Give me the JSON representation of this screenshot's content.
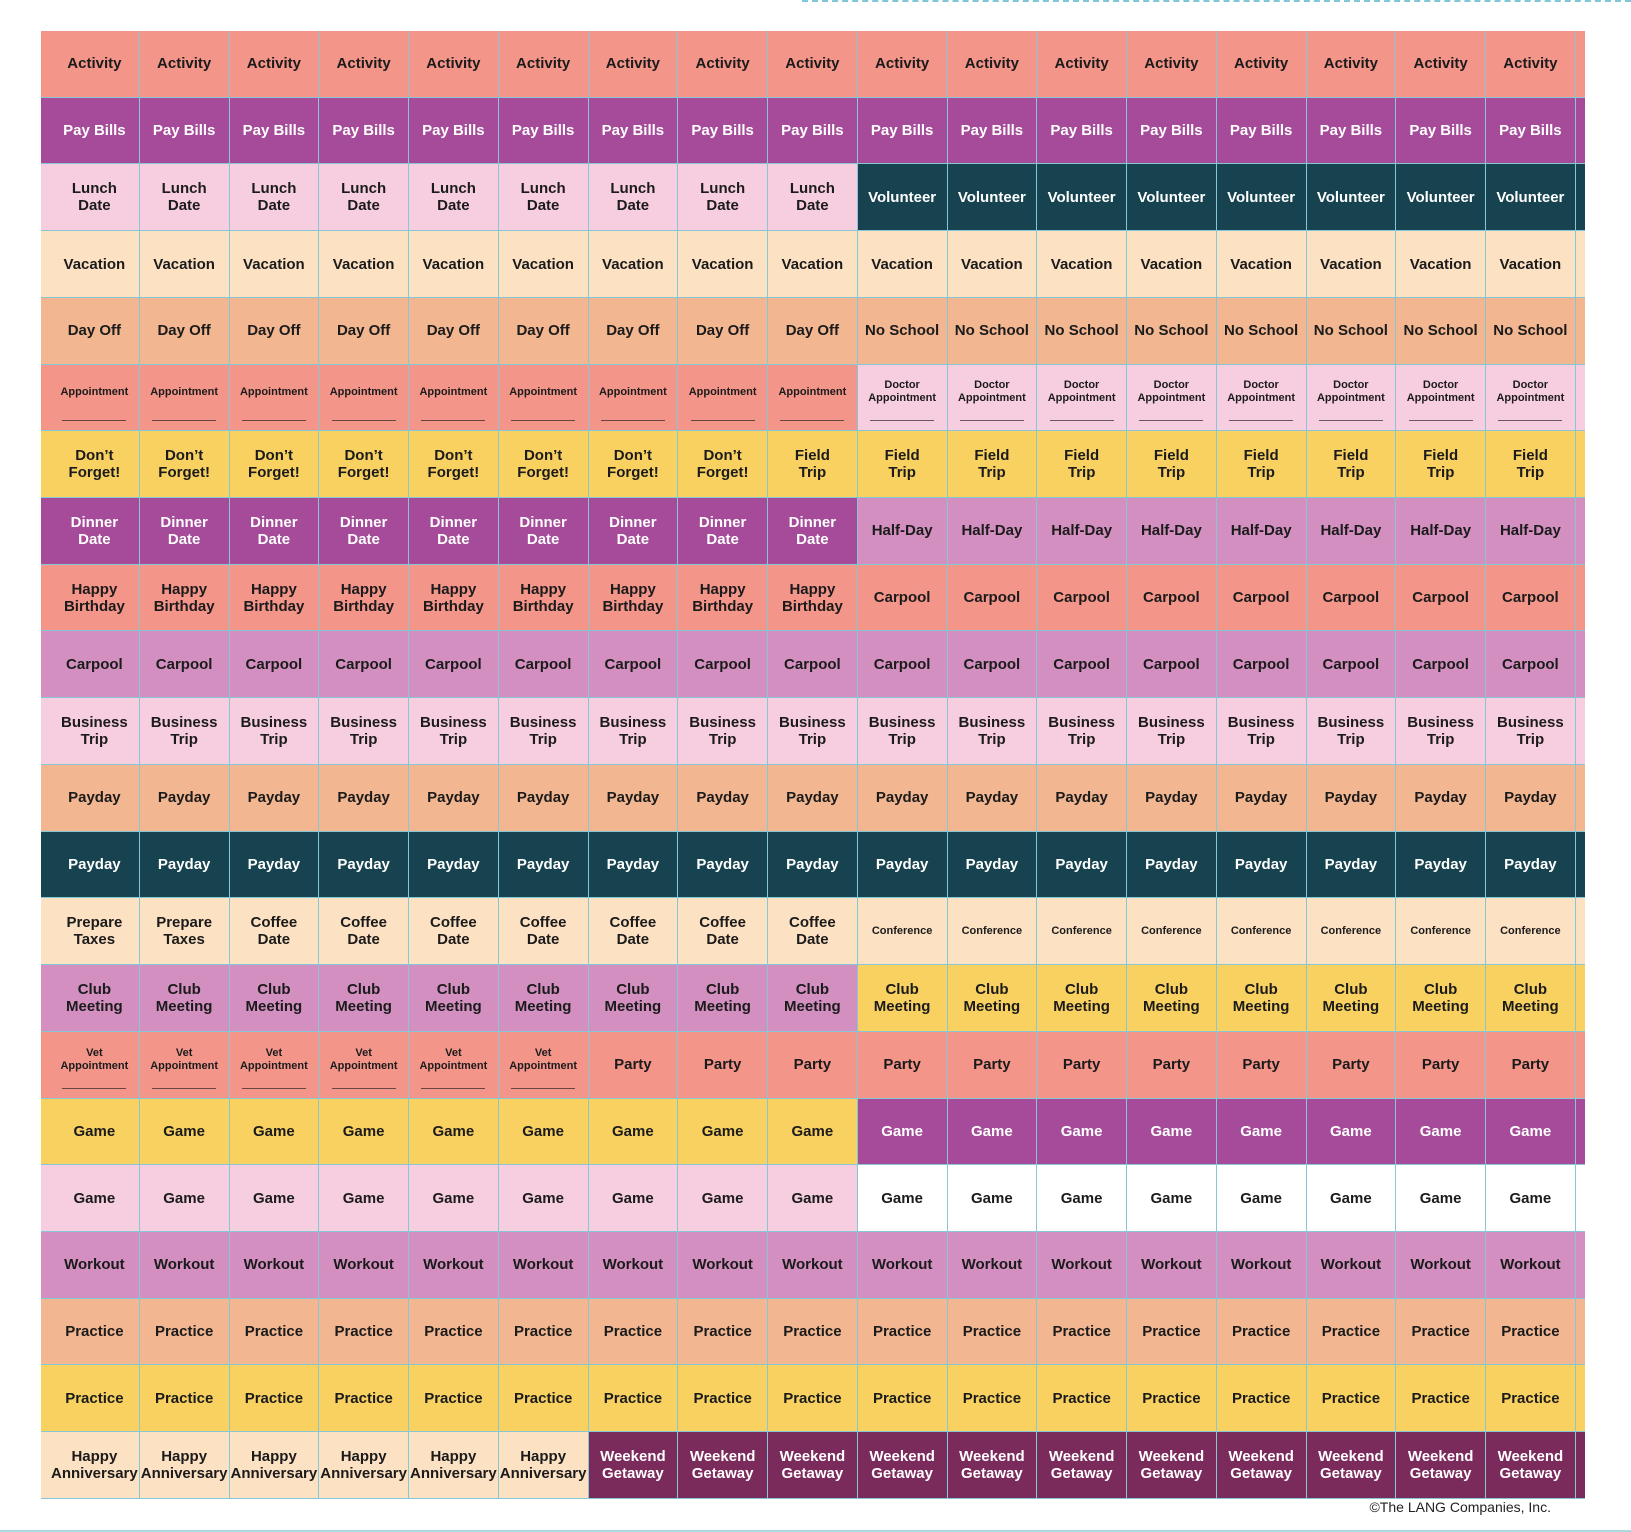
{
  "palette": {
    "salmon": "#f4958a",
    "purple": "#a54b9a",
    "lightpink": "#f7cde0",
    "darkteal": "#16434f",
    "peach": "#fde1c3",
    "tan": "#f2b690",
    "yellow": "#f9d160",
    "mauve": "#d28fc0",
    "white": "#ffffff",
    "plum": "#7b2a5c"
  },
  "text_colors": {
    "dark": "#1b1b1b",
    "light": "#ffffff"
  },
  "copyright": "©The LANG Companies, Inc.",
  "rows": [
    {
      "segments": [
        {
          "label": "Activity",
          "color": "salmon",
          "count": 17
        }
      ]
    },
    {
      "segments": [
        {
          "label": "Pay Bills",
          "color": "purple",
          "count": 17
        }
      ]
    },
    {
      "segments": [
        {
          "label": "Lunch\nDate",
          "color": "lightpink",
          "count": 9
        },
        {
          "label": "Volunteer",
          "color": "darkteal",
          "count": 8
        }
      ]
    },
    {
      "segments": [
        {
          "label": "Vacation",
          "color": "peach",
          "count": 17
        }
      ]
    },
    {
      "segments": [
        {
          "label": "Day Off",
          "color": "tan",
          "count": 9
        },
        {
          "label": "No School",
          "color": "tan",
          "count": 8
        }
      ]
    },
    {
      "segments": [
        {
          "label": "Appointment",
          "color": "salmon",
          "count": 9,
          "small": true,
          "line": true
        },
        {
          "label": "Doctor\nAppointment",
          "color": "lightpink",
          "count": 8,
          "small": true,
          "line": true
        }
      ]
    },
    {
      "segments": [
        {
          "label": "Don’t\nForget!",
          "color": "yellow",
          "count": 8
        },
        {
          "label": "Field\nTrip",
          "color": "yellow",
          "count": 9
        }
      ]
    },
    {
      "segments": [
        {
          "label": "Dinner\nDate",
          "color": "purple",
          "count": 9
        },
        {
          "label": "Half-Day",
          "color": "mauve",
          "count": 8
        }
      ]
    },
    {
      "segments": [
        {
          "label": "Happy\nBirthday",
          "color": "salmon",
          "count": 9
        },
        {
          "label": "Carpool",
          "color": "salmon",
          "count": 8
        }
      ]
    },
    {
      "segments": [
        {
          "label": "Carpool",
          "color": "mauve",
          "count": 17
        }
      ]
    },
    {
      "segments": [
        {
          "label": "Business\nTrip",
          "color": "lightpink",
          "count": 17
        }
      ]
    },
    {
      "segments": [
        {
          "label": "Payday",
          "color": "tan",
          "count": 17
        }
      ]
    },
    {
      "segments": [
        {
          "label": "Payday",
          "color": "darkteal",
          "count": 17
        }
      ]
    },
    {
      "segments": [
        {
          "label": "Prepare\nTaxes",
          "color": "peach",
          "count": 2
        },
        {
          "label": "Coffee\nDate",
          "color": "peach",
          "count": 7
        },
        {
          "label": "Conference",
          "color": "peach",
          "count": 8,
          "small": true,
          "nopad": true
        }
      ]
    },
    {
      "segments": [
        {
          "label": "Club\nMeeting",
          "color": "mauve",
          "count": 9
        },
        {
          "label": "Club\nMeeting",
          "color": "yellow",
          "count": 8
        }
      ]
    },
    {
      "segments": [
        {
          "label": "Vet\nAppointment",
          "color": "salmon",
          "count": 6,
          "small": true,
          "line": true
        },
        {
          "label": "Party",
          "color": "salmon",
          "count": 11
        }
      ]
    },
    {
      "segments": [
        {
          "label": "Game",
          "color": "yellow",
          "count": 9
        },
        {
          "label": "Game",
          "color": "purple",
          "count": 8
        }
      ]
    },
    {
      "segments": [
        {
          "label": "Game",
          "color": "lightpink",
          "count": 9
        },
        {
          "label": "Game",
          "color": "white",
          "count": 8
        }
      ]
    },
    {
      "segments": [
        {
          "label": "Workout",
          "color": "mauve",
          "count": 17
        }
      ]
    },
    {
      "segments": [
        {
          "label": "Practice",
          "color": "tan",
          "count": 17
        }
      ]
    },
    {
      "segments": [
        {
          "label": "Practice",
          "color": "yellow",
          "count": 17
        }
      ]
    },
    {
      "segments": [
        {
          "label": "Happy\nAnniversary",
          "color": "peach",
          "count": 6
        },
        {
          "label": "Weekend\nGetaway",
          "color": "plum",
          "count": 11
        }
      ]
    }
  ]
}
